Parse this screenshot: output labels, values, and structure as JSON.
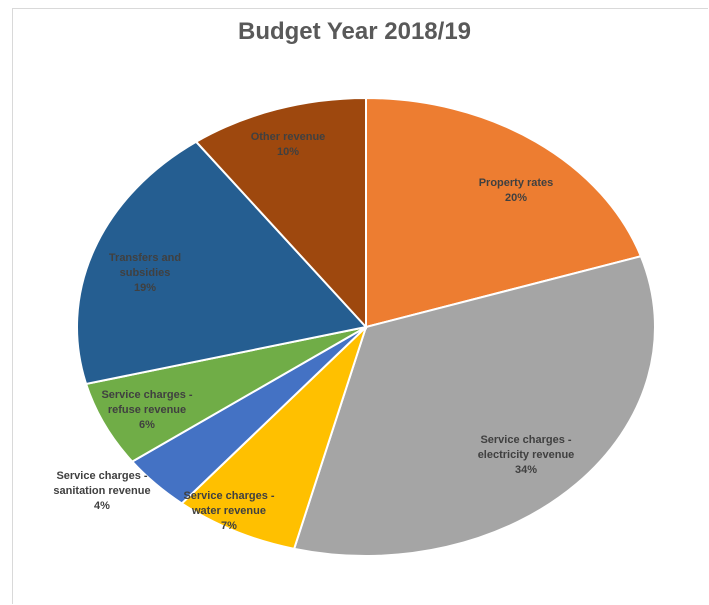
{
  "chart_data": {
    "type": "pie",
    "title": "Budget Year 2018/19",
    "slices": [
      {
        "label_lines": [
          "Property rates"
        ],
        "value_label": "20%",
        "value": 20,
        "color": "#ED7D31"
      },
      {
        "label_lines": [
          "Service charges -",
          "electricity revenue"
        ],
        "value_label": "34%",
        "value": 34,
        "color": "#A5A5A5"
      },
      {
        "label_lines": [
          "Service charges -",
          "water revenue"
        ],
        "value_label": "7%",
        "value": 7,
        "color": "#FFC000"
      },
      {
        "label_lines": [
          "Service charges -",
          "sanitation revenue"
        ],
        "value_label": "4%",
        "value": 4,
        "color": "#4472C4"
      },
      {
        "label_lines": [
          "Service charges -",
          "refuse revenue"
        ],
        "value_label": "6%",
        "value": 6,
        "color": "#70AD47"
      },
      {
        "label_lines": [
          "Transfers and",
          "subsidies"
        ],
        "value_label": "19%",
        "value": 19,
        "color": "#255E91"
      },
      {
        "label_lines": [
          "Other revenue"
        ],
        "value_label": "10%",
        "value": 10,
        "color": "#9E480E"
      }
    ]
  }
}
